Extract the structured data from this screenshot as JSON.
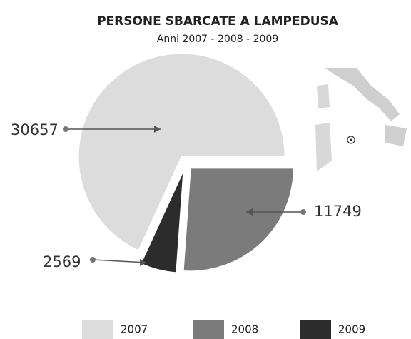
{
  "chart_data": {
    "type": "pie",
    "title": "PERSONE SBARCATE A LAMPEDUSA",
    "subtitle": "Anni 2007 - 2008 - 2009",
    "categories": [
      "2007",
      "2008",
      "2009"
    ],
    "values": [
      30657,
      11749,
      2569
    ],
    "colors": [
      "#dcdcdc",
      "#7b7b7b",
      "#2c2c2c"
    ]
  }
}
